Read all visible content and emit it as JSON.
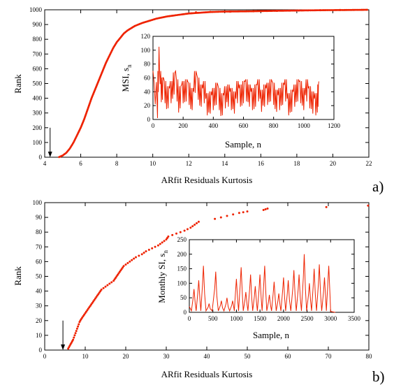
{
  "accent_color": "#ee2200",
  "chart_data": [
    {
      "type": "scatter",
      "panel_label": "a)",
      "xlabel": "ARfit Residuals Kurtosis",
      "ylabel": "Rank",
      "xlim": [
        4,
        22
      ],
      "ylim": [
        0,
        1000
      ],
      "xticks": [
        "4",
        "6",
        "8",
        "10",
        "12",
        "14",
        "16",
        "18",
        "20",
        "22"
      ],
      "yticks": [
        "0",
        "100",
        "200",
        "300",
        "400",
        "500",
        "600",
        "700",
        "800",
        "900",
        "1000"
      ],
      "arrow": {
        "x": 4.3,
        "y_from": 200,
        "y_to": 0
      },
      "curve_points": [
        [
          4.8,
          1
        ],
        [
          5.0,
          12
        ],
        [
          5.2,
          30
        ],
        [
          5.4,
          60
        ],
        [
          5.6,
          100
        ],
        [
          5.8,
          150
        ],
        [
          6.0,
          200
        ],
        [
          6.2,
          260
        ],
        [
          6.4,
          330
        ],
        [
          6.6,
          400
        ],
        [
          6.8,
          460
        ],
        [
          7.0,
          520
        ],
        [
          7.2,
          580
        ],
        [
          7.4,
          640
        ],
        [
          7.6,
          690
        ],
        [
          7.8,
          740
        ],
        [
          8.0,
          780
        ],
        [
          8.2,
          810
        ],
        [
          8.4,
          840
        ],
        [
          8.6,
          860
        ],
        [
          8.8,
          875
        ],
        [
          9.0,
          890
        ],
        [
          9.4,
          910
        ],
        [
          9.8,
          925
        ],
        [
          10.2,
          940
        ],
        [
          10.8,
          955
        ],
        [
          11.4,
          965
        ],
        [
          12.0,
          975
        ],
        [
          12.6,
          980
        ],
        [
          13.2,
          985
        ],
        [
          14.0,
          988
        ],
        [
          15.5,
          990
        ],
        [
          16.8,
          993
        ],
        [
          18.0,
          995
        ],
        [
          19.2,
          997
        ],
        [
          20.3,
          998
        ],
        [
          21.9,
          1000
        ]
      ],
      "scatter_points": [
        [
          12.4,
          983
        ],
        [
          13.2,
          986
        ],
        [
          14.3,
          987
        ],
        [
          15.6,
          990
        ],
        [
          16.9,
          993
        ],
        [
          18.1,
          995
        ],
        [
          19.3,
          997
        ],
        [
          20.4,
          999
        ],
        [
          21.9,
          1000
        ]
      ],
      "inset": {
        "type": "line",
        "xlabel": "Sample, n",
        "ylabel": "MSI, s_n",
        "ylabel_main": "MSI, s",
        "ylabel_sub": "n",
        "xlim": [
          0,
          1200
        ],
        "ylim": [
          0,
          120
        ],
        "xticks": [
          "0",
          "200",
          "400",
          "600",
          "800",
          "1000",
          "1200"
        ],
        "yticks": [
          "0",
          "20",
          "40",
          "60",
          "80",
          "100",
          "120"
        ],
        "x": [
          0,
          30,
          40,
          55,
          70,
          90,
          110,
          130,
          150,
          170,
          190,
          210,
          230,
          250,
          270,
          290,
          310,
          330,
          350,
          370,
          390,
          410,
          430,
          450,
          470,
          490,
          510,
          530,
          550,
          570,
          590,
          610,
          630,
          650,
          670,
          690,
          710,
          730,
          750,
          770,
          790,
          810,
          830,
          850,
          870,
          890,
          910,
          930,
          950,
          970,
          990,
          1010,
          1030,
          1050,
          1070,
          1090,
          1100
        ],
        "y": [
          70,
          2,
          105,
          25,
          60,
          15,
          45,
          30,
          70,
          10,
          50,
          25,
          55,
          15,
          40,
          65,
          20,
          45,
          30,
          10,
          35,
          20,
          50,
          5,
          35,
          25,
          40,
          15,
          30,
          45,
          20,
          55,
          25,
          40,
          15,
          50,
          30,
          20,
          45,
          25,
          55,
          15,
          35,
          20,
          50,
          30,
          10,
          40,
          25,
          55,
          20,
          35,
          45,
          15,
          30,
          10,
          55
        ]
      }
    },
    {
      "type": "scatter",
      "panel_label": "b)",
      "xlabel": "ARfit Residuals Kurtosis",
      "ylabel": "Rank",
      "xlim": [
        0,
        80
      ],
      "ylim": [
        0,
        100
      ],
      "xticks": [
        "0",
        "10",
        "20",
        "30",
        "40",
        "50",
        "60",
        "70",
        "80"
      ],
      "yticks": [
        "0",
        "10",
        "20",
        "30",
        "40",
        "50",
        "60",
        "70",
        "80",
        "90",
        "100"
      ],
      "arrow": {
        "x": 4.5,
        "y_from": 20,
        "y_to": 0
      },
      "points": [
        [
          5.8,
          1
        ],
        [
          6.2,
          3
        ],
        [
          6.6,
          5
        ],
        [
          7.0,
          7
        ],
        [
          7.4,
          10
        ],
        [
          7.8,
          13
        ],
        [
          8.2,
          16
        ],
        [
          8.6,
          19
        ],
        [
          9.0,
          21
        ],
        [
          9.5,
          23
        ],
        [
          10.0,
          25
        ],
        [
          10.5,
          27
        ],
        [
          11.0,
          29
        ],
        [
          11.5,
          31
        ],
        [
          12.0,
          33
        ],
        [
          12.5,
          35
        ],
        [
          13.0,
          37
        ],
        [
          13.5,
          39
        ],
        [
          14.0,
          41
        ],
        [
          15.0,
          43
        ],
        [
          16.0,
          45
        ],
        [
          17.0,
          47
        ],
        [
          17.5,
          49
        ],
        [
          18.0,
          51
        ],
        [
          18.5,
          53
        ],
        [
          19.0,
          55
        ],
        [
          19.5,
          57
        ],
        [
          20.5,
          59
        ],
        [
          21.5,
          61
        ],
        [
          22.5,
          63
        ],
        [
          24.0,
          65
        ],
        [
          25.0,
          67
        ],
        [
          26.5,
          69
        ],
        [
          28.0,
          71
        ],
        [
          29.0,
          73
        ],
        [
          30.0,
          75
        ],
        [
          30.5,
          77
        ],
        [
          32.5,
          79
        ],
        [
          34.5,
          81
        ],
        [
          36.0,
          83
        ],
        [
          37.0,
          85
        ],
        [
          38.0,
          87
        ],
        [
          42.0,
          89
        ],
        [
          45.0,
          91
        ],
        [
          48.0,
          93
        ],
        [
          50.0,
          94
        ],
        [
          54.0,
          95
        ],
        [
          55.0,
          96
        ],
        [
          69.5,
          97
        ],
        [
          79.8,
          98
        ]
      ],
      "inset": {
        "type": "line",
        "xlabel": "Sample, n",
        "ylabel": "Monthly SI, s_n",
        "ylabel_main": "Monthly SI, s",
        "ylabel_sub": "n",
        "xlim": [
          0,
          3500
        ],
        "ylim": [
          0,
          250
        ],
        "xticks": [
          "0",
          "500",
          "1000",
          "1500",
          "2000",
          "2500",
          "3000",
          "3500"
        ],
        "yticks": [
          "0",
          "50",
          "100",
          "150",
          "200",
          "250"
        ],
        "peaks": [
          [
            100,
            80
          ],
          [
            200,
            110
          ],
          [
            300,
            160
          ],
          [
            420,
            30
          ],
          [
            560,
            140
          ],
          [
            680,
            40
          ],
          [
            800,
            50
          ],
          [
            920,
            40
          ],
          [
            1000,
            115
          ],
          [
            1100,
            155
          ],
          [
            1200,
            70
          ],
          [
            1300,
            130
          ],
          [
            1400,
            90
          ],
          [
            1500,
            130
          ],
          [
            1600,
            160
          ],
          [
            1700,
            60
          ],
          [
            1800,
            105
          ],
          [
            1900,
            65
          ],
          [
            2000,
            120
          ],
          [
            2100,
            110
          ],
          [
            2220,
            145
          ],
          [
            2330,
            130
          ],
          [
            2440,
            200
          ],
          [
            2550,
            100
          ],
          [
            2650,
            150
          ],
          [
            2760,
            165
          ],
          [
            2870,
            120
          ],
          [
            2960,
            160
          ]
        ],
        "end_x": 3100
      }
    }
  ]
}
